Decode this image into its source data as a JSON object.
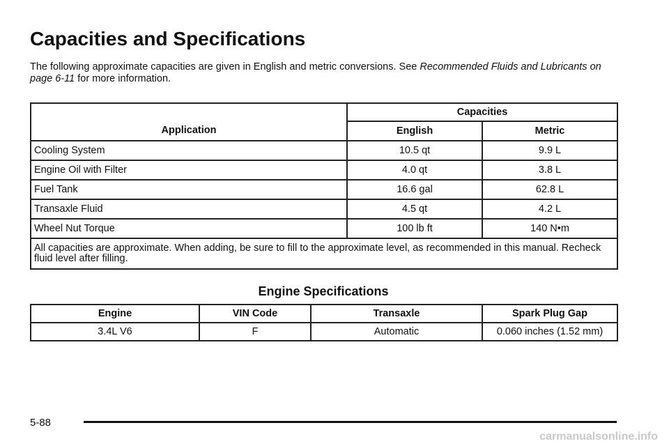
{
  "header": {
    "title": "Capacities and Specifications"
  },
  "intro": {
    "before": "The following approximate capacities are given in English and metric conversions. See ",
    "link": "Recommended Fluids and Lubricants on page 6-11",
    "after": " for more information."
  },
  "capacities_table": {
    "headers": {
      "application": "Application",
      "group": "Capacities",
      "english": "English",
      "metric": "Metric"
    },
    "rows": [
      [
        "Cooling System",
        "10.5 qt",
        "9.9 L"
      ],
      [
        "Engine Oil with Filter",
        "4.0 qt",
        "3.8 L"
      ],
      [
        "Fuel Tank",
        "16.6 gal",
        "62.8 L"
      ],
      [
        "Transaxle Fluid",
        "4.5 qt",
        "4.2 L"
      ],
      [
        "Wheel Nut Torque",
        "100 lb ft",
        "140 N•m"
      ]
    ],
    "note": "All capacities are approximate. When adding, be sure to fill to the approximate level, as recommended in this manual. Recheck fluid level after filling."
  },
  "engine_section": {
    "title": "Engine Specifications",
    "headers": [
      "Engine",
      "VIN Code",
      "Transaxle",
      "Spark Plug Gap"
    ],
    "rows": [
      [
        "3.4L V6",
        "F",
        "Automatic",
        "0.060 inches (1.52 mm)"
      ]
    ]
  },
  "footer": {
    "page_number": "5-88",
    "watermark": "carmanualsonline.info"
  }
}
